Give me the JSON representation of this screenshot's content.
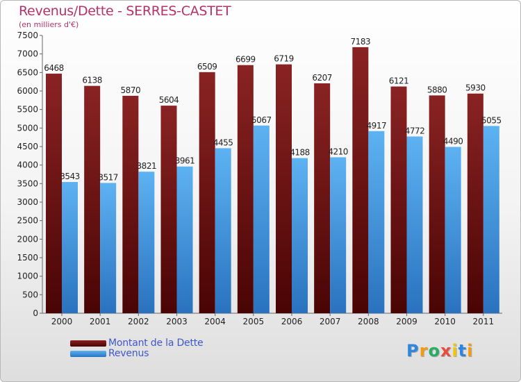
{
  "chart_data": {
    "type": "bar",
    "title": "Revenus/Dette - SERRES-CASTET",
    "subtitle": "(en milliers d'€)",
    "categories": [
      "2000",
      "2001",
      "2002",
      "2003",
      "2004",
      "2005",
      "2006",
      "2007",
      "2008",
      "2009",
      "2010",
      "2011"
    ],
    "series": [
      {
        "name": "Montant de la Dette",
        "color": "#6e0f0f",
        "values": [
          6468,
          6138,
          5870,
          5604,
          6509,
          6699,
          6719,
          6207,
          7183,
          6121,
          5880,
          5930
        ]
      },
      {
        "name": "Revenus",
        "color": "#3f8fd8",
        "values": [
          3543,
          3517,
          3821,
          3961,
          4455,
          5067,
          4188,
          4210,
          4917,
          4772,
          4490,
          5055
        ]
      }
    ],
    "ylim": [
      0,
      7500
    ],
    "yticks": [
      0,
      500,
      1000,
      1500,
      2000,
      2500,
      3000,
      3500,
      4000,
      4500,
      5000,
      5500,
      6000,
      6500,
      7000,
      7500
    ],
    "grid": false,
    "legend_position": "bottom-left"
  },
  "logo": {
    "letters": [
      {
        "ch": "P",
        "color": "#2e86de"
      },
      {
        "ch": "r",
        "color": "#f39c12"
      },
      {
        "ch": "o",
        "color": "#27ae60"
      },
      {
        "ch": "x",
        "color": "#e74c3c"
      },
      {
        "ch": "i",
        "color": "#f1c40f"
      },
      {
        "ch": "t",
        "color": "#2e86de"
      },
      {
        "ch": "i",
        "color": "#f39c12"
      }
    ]
  }
}
